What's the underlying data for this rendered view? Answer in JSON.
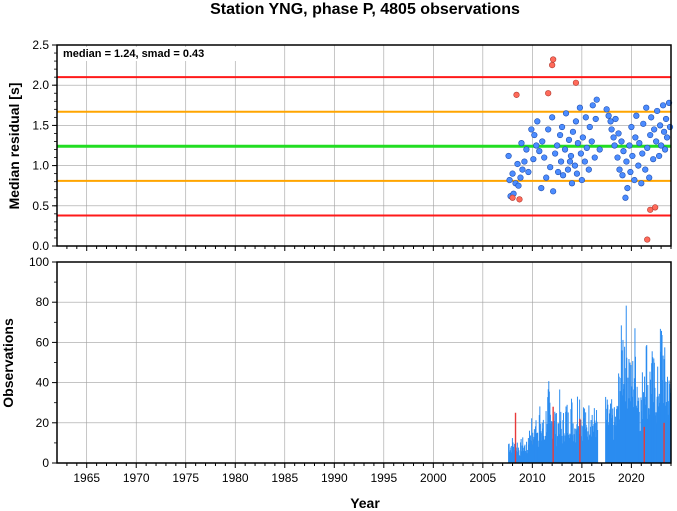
{
  "title": "Station YNG, phase P, 4805 observations",
  "colors": {
    "outer_limit": "#ff1a1a",
    "inner_limit": "#ffa500",
    "median_line": "#22dd22",
    "point_in": "#4c8cff",
    "point_out": "#ff6a5a",
    "bar": "#2b8cf0",
    "bar_flag": "#e83a3a",
    "grid": "#a0a0a0"
  },
  "chart_data": [
    {
      "type": "scatter",
      "annotation": "median = 1.24, smad = 0.43",
      "ylabel": "Median residual [s]",
      "xlim": [
        1962,
        2024
      ],
      "ylim": [
        0,
        2.5
      ],
      "yticks": [
        "0.0",
        "0.5",
        "1.0",
        "1.5",
        "2.0",
        "2.5"
      ],
      "grid": true,
      "reference_lines": [
        {
          "name": "upper outer",
          "y": 2.1,
          "style": "outer_limit"
        },
        {
          "name": "upper inner",
          "y": 1.67,
          "style": "inner_limit"
        },
        {
          "name": "median",
          "y": 1.24,
          "style": "median_line"
        },
        {
          "name": "lower inner",
          "y": 0.81,
          "style": "inner_limit"
        },
        {
          "name": "lower outer",
          "y": 0.38,
          "style": "outer_limit"
        }
      ],
      "points_in": [
        [
          2007.6,
          1.12
        ],
        [
          2007.7,
          0.82
        ],
        [
          2007.8,
          0.62
        ],
        [
          2008.0,
          0.9
        ],
        [
          2008.1,
          0.65
        ],
        [
          2008.3,
          0.78
        ],
        [
          2008.5,
          1.02
        ],
        [
          2008.6,
          0.75
        ],
        [
          2008.8,
          0.85
        ],
        [
          2008.9,
          1.28
        ],
        [
          2009.0,
          0.95
        ],
        [
          2009.2,
          1.05
        ],
        [
          2009.4,
          1.2
        ],
        [
          2009.6,
          0.92
        ],
        [
          2009.9,
          1.45
        ],
        [
          2010.1,
          1.08
        ],
        [
          2010.2,
          1.38
        ],
        [
          2010.4,
          1.25
        ],
        [
          2010.5,
          1.55
        ],
        [
          2010.7,
          1.18
        ],
        [
          2010.9,
          0.72
        ],
        [
          2011.0,
          1.3
        ],
        [
          2011.2,
          1.1
        ],
        [
          2011.4,
          0.85
        ],
        [
          2011.6,
          1.45
        ],
        [
          2011.8,
          0.98
        ],
        [
          2012.0,
          1.6
        ],
        [
          2012.1,
          0.68
        ],
        [
          2012.3,
          1.15
        ],
        [
          2012.5,
          1.25
        ],
        [
          2012.6,
          0.92
        ],
        [
          2012.8,
          1.38
        ],
        [
          2012.9,
          1.05
        ],
        [
          2013.0,
          1.48
        ],
        [
          2013.1,
          0.88
        ],
        [
          2013.3,
          1.2
        ],
        [
          2013.4,
          1.65
        ],
        [
          2013.6,
          0.95
        ],
        [
          2013.7,
          1.32
        ],
        [
          2013.9,
          1.12
        ],
        [
          2014.0,
          0.78
        ],
        [
          2014.1,
          1.42
        ],
        [
          2014.3,
          1.0
        ],
        [
          2014.4,
          1.55
        ],
        [
          2014.5,
          0.9
        ],
        [
          2014.6,
          1.28
        ],
        [
          2014.8,
          1.72
        ],
        [
          2014.9,
          1.15
        ],
        [
          2015.0,
          0.82
        ],
        [
          2015.1,
          1.35
        ],
        [
          2015.3,
          1.05
        ],
        [
          2015.4,
          1.6
        ],
        [
          2015.5,
          1.22
        ],
        [
          2015.7,
          0.95
        ],
        [
          2015.8,
          1.48
        ],
        [
          2016.0,
          1.3
        ],
        [
          2016.1,
          1.75
        ],
        [
          2016.3,
          1.1
        ],
        [
          2016.4,
          1.58
        ],
        [
          2016.5,
          1.82
        ],
        [
          2017.5,
          1.7
        ],
        [
          2017.7,
          1.62
        ],
        [
          2017.9,
          1.55
        ],
        [
          2018.0,
          1.45
        ],
        [
          2018.2,
          1.35
        ],
        [
          2018.3,
          1.25
        ],
        [
          2018.4,
          1.58
        ],
        [
          2018.6,
          1.1
        ],
        [
          2018.7,
          1.4
        ],
        [
          2018.8,
          0.95
        ],
        [
          2019.0,
          1.3
        ],
        [
          2019.1,
          0.88
        ],
        [
          2019.2,
          1.18
        ],
        [
          2019.4,
          0.6
        ],
        [
          2019.5,
          1.05
        ],
        [
          2019.6,
          0.72
        ],
        [
          2019.8,
          1.25
        ],
        [
          2019.9,
          0.92
        ],
        [
          2020.0,
          1.48
        ],
        [
          2020.1,
          1.12
        ],
        [
          2020.3,
          0.82
        ],
        [
          2020.4,
          1.35
        ],
        [
          2020.5,
          1.62
        ],
        [
          2020.7,
          1.0
        ],
        [
          2020.8,
          1.28
        ],
        [
          2021.0,
          0.78
        ],
        [
          2021.1,
          1.15
        ],
        [
          2021.2,
          1.52
        ],
        [
          2021.4,
          0.95
        ],
        [
          2021.5,
          1.72
        ],
        [
          2021.6,
          1.22
        ],
        [
          2021.8,
          0.85
        ],
        [
          2021.9,
          1.38
        ],
        [
          2022.0,
          1.6
        ],
        [
          2022.2,
          1.08
        ],
        [
          2022.3,
          1.45
        ],
        [
          2022.5,
          1.3
        ],
        [
          2022.6,
          1.68
        ],
        [
          2022.8,
          1.12
        ],
        [
          2022.9,
          1.5
        ],
        [
          2023.0,
          1.25
        ],
        [
          2023.2,
          1.75
        ],
        [
          2023.3,
          1.42
        ],
        [
          2023.5,
          1.58
        ],
        [
          2023.6,
          1.35
        ],
        [
          2023.8,
          1.78
        ],
        [
          2023.9,
          1.48
        ],
        [
          2023.4,
          1.2
        ],
        [
          2016.8,
          1.2
        ],
        [
          2013.8,
          1.05
        ]
      ],
      "points_out": [
        [
          2008.0,
          0.6
        ],
        [
          2008.4,
          1.88
        ],
        [
          2008.7,
          0.58
        ],
        [
          2011.6,
          1.9
        ],
        [
          2012.0,
          2.25
        ],
        [
          2012.1,
          2.32
        ],
        [
          2014.4,
          2.03
        ],
        [
          2021.6,
          0.08
        ],
        [
          2021.9,
          0.45
        ],
        [
          2022.4,
          0.48
        ]
      ]
    },
    {
      "type": "bar",
      "ylabel": "Observations",
      "xlabel": "Year",
      "xlim": [
        1962,
        2024
      ],
      "ylim": [
        0,
        100
      ],
      "yticks": [
        "0",
        "20",
        "40",
        "60",
        "80",
        "100"
      ],
      "xticks": [
        "1965",
        "1970",
        "1975",
        "1980",
        "1985",
        "1990",
        "1995",
        "2000",
        "2005",
        "2010",
        "2015",
        "2020"
      ],
      "grid": true,
      "segments": [
        {
          "from": 2007.6,
          "to": 2009.6,
          "peaks": [
            14,
            12,
            14,
            10,
            13,
            8,
            14,
            12,
            11,
            9
          ]
        },
        {
          "from": 2009.6,
          "to": 2011.0,
          "peaks": [
            22,
            18,
            28,
            15,
            24,
            20,
            35,
            18,
            42,
            16,
            25
          ]
        },
        {
          "from": 2011.0,
          "to": 2013.4,
          "peaks": [
            30,
            18,
            35,
            42,
            25,
            40,
            30,
            22,
            38,
            20,
            28,
            32
          ]
        },
        {
          "from": 2013.4,
          "to": 2016.6,
          "peaks": [
            35,
            28,
            40,
            30,
            25,
            38,
            42,
            28,
            35,
            22,
            30,
            40,
            26,
            32,
            24
          ]
        },
        {
          "from": 2017.4,
          "to": 2018.6,
          "peaks": [
            35,
            30,
            32,
            28,
            34
          ]
        },
        {
          "from": 2018.6,
          "to": 2021.0,
          "peaks": [
            40,
            55,
            70,
            80,
            86,
            72,
            65,
            50,
            60,
            75,
            55,
            45,
            38
          ]
        },
        {
          "from": 2021.0,
          "to": 2022.6,
          "peaks": [
            40,
            55,
            80,
            60,
            45,
            70,
            50,
            62,
            38
          ]
        },
        {
          "from": 2022.6,
          "to": 2024.0,
          "peaks": [
            45,
            58,
            72,
            80,
            65,
            50,
            60,
            45,
            55
          ]
        }
      ],
      "flagged_bars": [
        {
          "x": 2008.3,
          "value": 25
        },
        {
          "x": 2012.1,
          "value": 28
        },
        {
          "x": 2014.8,
          "value": 22
        },
        {
          "x": 2021.3,
          "value": 18
        },
        {
          "x": 2023.3,
          "value": 20
        }
      ]
    }
  ]
}
